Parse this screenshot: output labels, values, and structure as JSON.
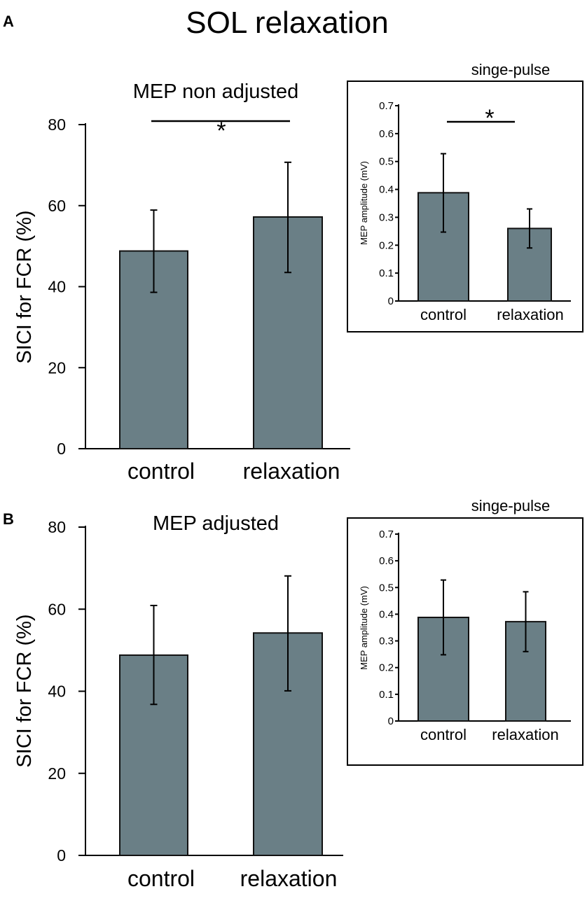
{
  "title": "SOL relaxation",
  "colors": {
    "bar": "#6a7f86",
    "axis": "#000000"
  },
  "chart_data": [
    {
      "id": "A-main",
      "panel": "A",
      "type": "bar",
      "title": "MEP non adjusted",
      "ylabel": "SICI for FCR (%)",
      "categories": [
        "control",
        "relaxation"
      ],
      "values": [
        48.8,
        57.2
      ],
      "error_low": [
        38.6,
        43.5
      ],
      "error_high": [
        58.9,
        70.7
      ],
      "ylim": [
        0,
        80
      ],
      "yticks": [
        "0",
        "20",
        "40",
        "60",
        "80"
      ],
      "significance": "*"
    },
    {
      "id": "A-inset",
      "panel": "A",
      "type": "bar",
      "title": "singe-pulse",
      "ylabel": "MEP amplitude (mV)",
      "categories": [
        "control",
        "relaxation"
      ],
      "values": [
        0.388,
        0.26
      ],
      "error_low": [
        0.247,
        0.19
      ],
      "error_high": [
        0.528,
        0.33
      ],
      "ylim": [
        0,
        0.7
      ],
      "yticks": [
        "0",
        "0.1",
        "0.2",
        "0.3",
        "0.4",
        "0.5",
        "0.6",
        "0.7"
      ],
      "significance": "*"
    },
    {
      "id": "B-main",
      "panel": "B",
      "type": "bar",
      "title": "MEP adjusted",
      "ylabel": "SICI for FCR (%)",
      "categories": [
        "control",
        "relaxation"
      ],
      "values": [
        48.8,
        54.2
      ],
      "error_low": [
        36.8,
        40.1
      ],
      "error_high": [
        60.9,
        68.1
      ],
      "ylim": [
        0,
        80
      ],
      "yticks": [
        "0",
        "20",
        "40",
        "60",
        "80"
      ],
      "significance": ""
    },
    {
      "id": "B-inset",
      "panel": "B",
      "type": "bar",
      "title": "singe-pulse",
      "ylabel": "MEP amplitude (mV)",
      "categories": [
        "control",
        "relaxation"
      ],
      "values": [
        0.388,
        0.372
      ],
      "error_low": [
        0.248,
        0.26
      ],
      "error_high": [
        0.528,
        0.484
      ],
      "ylim": [
        0,
        0.7
      ],
      "yticks": [
        "0",
        "0.1",
        "0.2",
        "0.3",
        "0.4",
        "0.5",
        "0.6",
        "0.7"
      ],
      "significance": ""
    }
  ]
}
